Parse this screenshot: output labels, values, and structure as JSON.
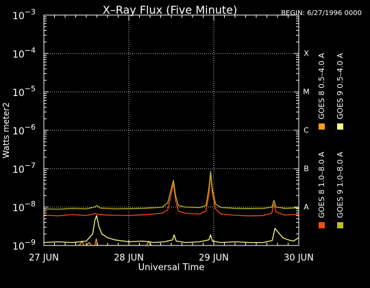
{
  "chart_data": {
    "type": "line",
    "title": "X–Ray Flux (Five Minute)",
    "begin_label": "BEGIN: 6/27/1996 0000",
    "xlabel": "Universal Time",
    "ylabel": "Watts meter2",
    "y_scale": "log",
    "ylim": [
      1e-09,
      0.001
    ],
    "y_ticks": [
      {
        "base": "10",
        "exp": "−9",
        "value": 1e-09
      },
      {
        "base": "10",
        "exp": "−8",
        "value": 1e-08
      },
      {
        "base": "10",
        "exp": "−7",
        "value": 1e-07
      },
      {
        "base": "10",
        "exp": "−6",
        "value": 1e-06
      },
      {
        "base": "10",
        "exp": "−5",
        "value": 1e-05
      },
      {
        "base": "10",
        "exp": "−4",
        "value": 0.0001
      },
      {
        "base": "10",
        "exp": "−3",
        "value": 0.001
      }
    ],
    "xlim": [
      0,
      72
    ],
    "x_ticks": [
      {
        "label": "27 JUN",
        "hour": 0
      },
      {
        "label": "28 JUN",
        "hour": 24
      },
      {
        "label": "29 JUN",
        "hour": 48
      },
      {
        "label": "30 JUN",
        "hour": 72
      }
    ],
    "flare_classes": [
      {
        "label": "X",
        "value": 0.0001
      },
      {
        "label": "M",
        "value": 1e-05
      },
      {
        "label": "C",
        "value": 1e-06
      },
      {
        "label": "B",
        "value": 1e-07
      },
      {
        "label": "A",
        "value": 1e-08
      }
    ],
    "grid": true,
    "legend_position": "right",
    "series": [
      {
        "name": "GOES 8 1.0–8.0 A",
        "color": "#ff4a14",
        "points": [
          [
            0,
            6.2e-09
          ],
          [
            4,
            5.9e-09
          ],
          [
            8,
            6.4e-09
          ],
          [
            12,
            6e-09
          ],
          [
            14.5,
            6.8e-09
          ],
          [
            16,
            6.3e-09
          ],
          [
            20,
            6.1e-09
          ],
          [
            24,
            6e-09
          ],
          [
            28,
            6.3e-09
          ],
          [
            31,
            6.6e-09
          ],
          [
            33.5,
            7e-09
          ],
          [
            35,
            8.5e-09
          ],
          [
            36,
            2.2e-08
          ],
          [
            36.6,
            4.2e-08
          ],
          [
            37.2,
            1.5e-08
          ],
          [
            38,
            7.8e-09
          ],
          [
            40,
            6.9e-09
          ],
          [
            44,
            6.6e-09
          ],
          [
            45.8,
            8e-09
          ],
          [
            46.6,
            2e-08
          ],
          [
            47.1,
            7.6e-08
          ],
          [
            47.6,
            2.2e-08
          ],
          [
            48.5,
            9e-09
          ],
          [
            50,
            6.6e-09
          ],
          [
            54,
            6.1e-09
          ],
          [
            58,
            5.9e-09
          ],
          [
            62,
            6e-09
          ],
          [
            64.4,
            7e-09
          ],
          [
            65,
            1.2e-08
          ],
          [
            65.6,
            7.5e-09
          ],
          [
            68,
            6.2e-09
          ],
          [
            72,
            6.5e-09
          ]
        ]
      },
      {
        "name": "GOES 8 0.5–4.0 A",
        "color": "#ff9c1a",
        "points": [
          [
            10,
            1e-09
          ],
          [
            10.8,
            1.3e-09
          ],
          [
            11.3,
            1e-09
          ],
          [
            12,
            1e-09
          ],
          [
            12.8,
            1.2e-09
          ],
          [
            13.4,
            1e-09
          ],
          [
            14.4,
            1e-09
          ],
          [
            14.8,
            1.5e-09
          ],
          [
            15.2,
            1e-09
          ],
          [
            29,
            1e-09
          ],
          [
            29.7,
            1.3e-09
          ],
          [
            30.4,
            1e-09
          ]
        ]
      },
      {
        "name": "GOES 9 1.0–8.0 A",
        "color": "#bcbc1e",
        "points": [
          [
            0,
            9e-09
          ],
          [
            4,
            8.8e-09
          ],
          [
            8,
            9.2e-09
          ],
          [
            12,
            9e-09
          ],
          [
            14.3,
            1e-08
          ],
          [
            15,
            1.1e-08
          ],
          [
            16,
            9.4e-09
          ],
          [
            20,
            9e-09
          ],
          [
            24,
            9.1e-09
          ],
          [
            28,
            9.3e-09
          ],
          [
            31,
            9.6e-09
          ],
          [
            33.5,
            1e-08
          ],
          [
            35,
            1.3e-08
          ],
          [
            36,
            3e-08
          ],
          [
            36.6,
            5e-08
          ],
          [
            37.2,
            2e-08
          ],
          [
            38,
            1.1e-08
          ],
          [
            40,
            1e-08
          ],
          [
            44,
            9.7e-09
          ],
          [
            45.8,
            1.1e-08
          ],
          [
            46.6,
            3e-08
          ],
          [
            47.1,
            8.5e-08
          ],
          [
            47.6,
            3e-08
          ],
          [
            48.5,
            1.2e-08
          ],
          [
            50,
            9.8e-09
          ],
          [
            54,
            9.3e-09
          ],
          [
            58,
            9.1e-09
          ],
          [
            62,
            9.2e-09
          ],
          [
            64.4,
            1e-08
          ],
          [
            65,
            1.5e-08
          ],
          [
            65.6,
            1e-08
          ],
          [
            68,
            9.3e-09
          ],
          [
            72,
            9.5e-09
          ]
        ]
      },
      {
        "name": "GOES 9 0.5–4.0 A",
        "color": "#ffff84",
        "points": [
          [
            0,
            1.2e-09
          ],
          [
            4,
            1.25e-09
          ],
          [
            8,
            1.2e-09
          ],
          [
            12,
            1.3e-09
          ],
          [
            13.8,
            2e-09
          ],
          [
            14.4,
            4.5e-09
          ],
          [
            14.9,
            6e-09
          ],
          [
            15.6,
            3e-09
          ],
          [
            16.4,
            2e-09
          ],
          [
            18,
            1.6e-09
          ],
          [
            20,
            1.4e-09
          ],
          [
            24,
            1.25e-09
          ],
          [
            28,
            1.3e-09
          ],
          [
            31,
            1.2e-09
          ],
          [
            34,
            1.25e-09
          ],
          [
            36.4,
            1.4e-09
          ],
          [
            36.8,
            1.9e-09
          ],
          [
            37.4,
            1.3e-09
          ],
          [
            40,
            1.2e-09
          ],
          [
            44,
            1.25e-09
          ],
          [
            46.6,
            1.4e-09
          ],
          [
            47.1,
            1.9e-09
          ],
          [
            47.6,
            1.3e-09
          ],
          [
            50,
            1.2e-09
          ],
          [
            54,
            1.25e-09
          ],
          [
            58,
            1.2e-09
          ],
          [
            62,
            1.2e-09
          ],
          [
            64.5,
            1.35e-09
          ],
          [
            65.3,
            2.8e-09
          ],
          [
            66.2,
            2.2e-09
          ],
          [
            67.5,
            1.6e-09
          ],
          [
            69,
            1.4e-09
          ],
          [
            70.5,
            1.3e-09
          ],
          [
            72,
            1.6e-09
          ]
        ]
      }
    ]
  }
}
